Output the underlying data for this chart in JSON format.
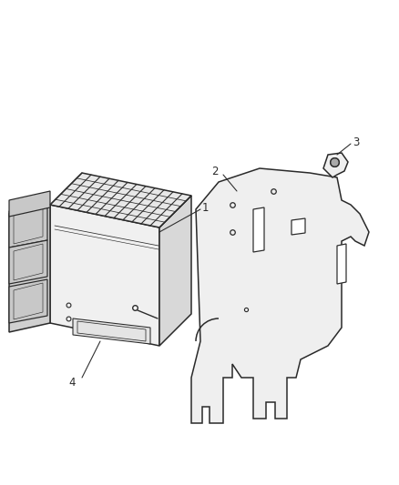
{
  "background_color": "#ffffff",
  "fig_width": 4.39,
  "fig_height": 5.33,
  "dpi": 100,
  "line_color": "#2a2a2a",
  "label_color": "#2a2a2a",
  "line_width": 1.1,
  "label_fontsize": 8.5
}
